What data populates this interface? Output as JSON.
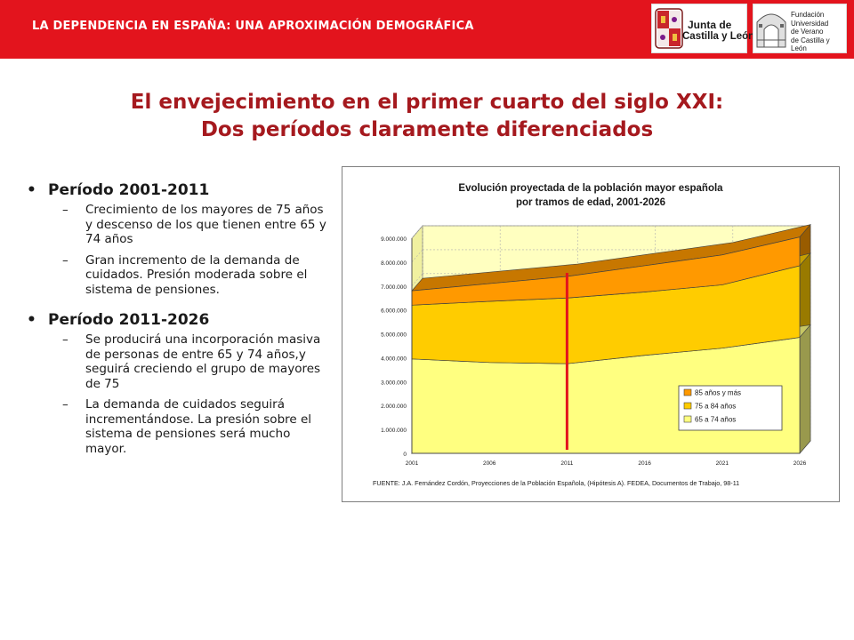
{
  "header": {
    "title": "LA DEPENDENCIA EN ESPAÑA: UNA APROXIMACIÓN DEMOGRÁFICA",
    "logo_jcyl_line1": "Junta de",
    "logo_jcyl_line2": "Castilla y León",
    "logo_fund_lines": [
      "Fundación",
      "Universidad",
      "de Verano",
      "de Castilla y León"
    ]
  },
  "main_title": {
    "line1": "El envejecimiento en el primer cuarto del siglo XXI:",
    "line2": "Dos períodos claramente diferenciados"
  },
  "bullets": [
    {
      "label": "Período 2001-2011",
      "subs": [
        "Crecimiento de los mayores de 75 años y descenso de los que tienen entre 65 y 74 años",
        "Gran incremento de la demanda de cuidados. Presión moderada sobre el sistema de pensiones."
      ]
    },
    {
      "label": "Período 2011-2026",
      "subs": [
        "Se producirá una incorporación masiva de personas de entre 65 y 74 años,y seguirá creciendo el grupo de mayores de 75",
        "La demanda de cuidados seguirá incrementándose. La presión sobre el sistema de pensiones será mucho mayor."
      ]
    }
  ],
  "chart_data": {
    "type": "area",
    "stacked": true,
    "title": "Evolución proyectada de la población mayor española por tramos de edad, 2001-2026",
    "title_line1": "Evolución proyectada de la población mayor española",
    "title_line2": "por tramos de edad, 2001-2026",
    "x": [
      "2001",
      "2006",
      "2011",
      "2016",
      "2021",
      "2026"
    ],
    "series": [
      {
        "name": "65 a 74 años",
        "color": "#ffff80",
        "values": [
          3950000,
          3800000,
          3750000,
          4100000,
          4400000,
          4850000
        ]
      },
      {
        "name": "75 a 84 años",
        "color": "#ffcc00",
        "values": [
          2250000,
          2560000,
          2750000,
          2650000,
          2650000,
          3000000
        ]
      },
      {
        "name": "85 años y más",
        "color": "#ff9900",
        "values": [
          600000,
          740000,
          900000,
          1100000,
          1250000,
          1200000
        ]
      }
    ],
    "y_ticks": [
      "0",
      "1.000.000",
      "2.000.000",
      "3.000.000",
      "4.000.000",
      "5.000.000",
      "6.000.000",
      "7.000.000",
      "8.000.000",
      "9.000.000"
    ],
    "ylim": [
      0,
      9000000
    ],
    "marker_x": "2011",
    "marker_color": "#e3141d",
    "legend_position": "lower-right",
    "grid": true,
    "source": "FUENTE: J.A. Fernández Cordón, Proyecciones de la Población Española, (Hipótesis A). FEDEA, Documentos de Trabajo, 98-11"
  }
}
